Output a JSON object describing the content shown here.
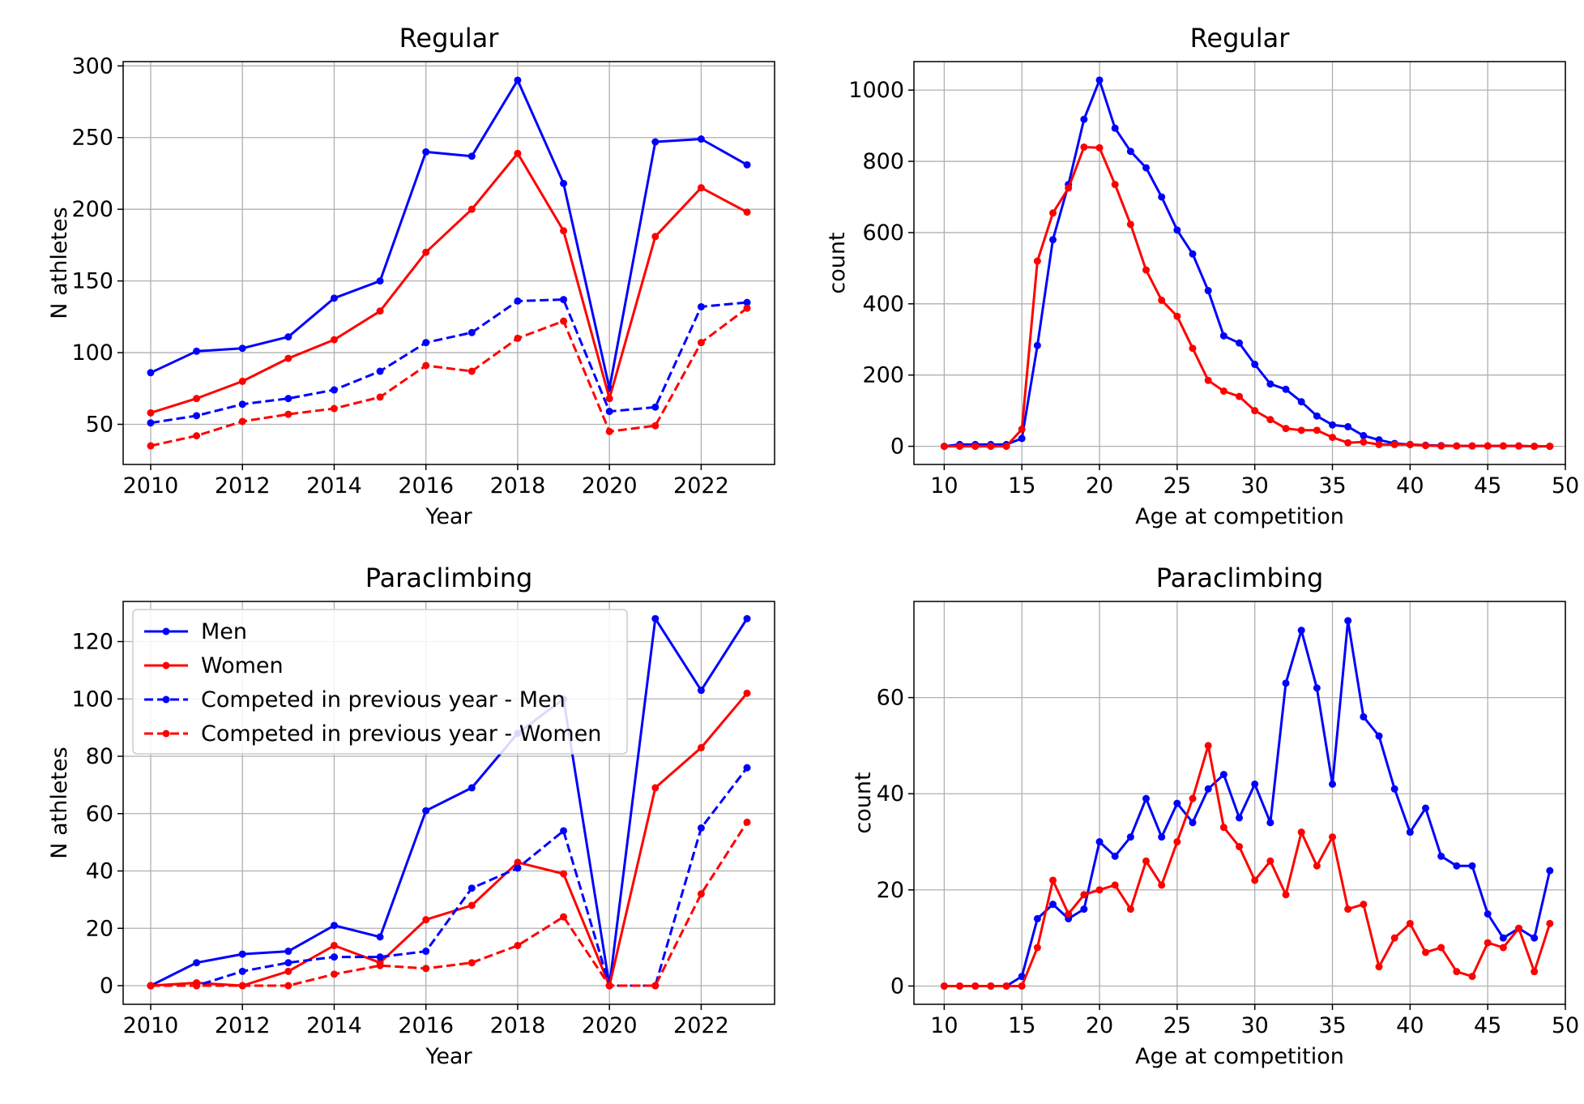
{
  "colors": {
    "men": "#0000ff",
    "women": "#ff0000",
    "grid": "#b0b0b0",
    "axis": "#000000"
  },
  "legend": {
    "placement": "upper-left",
    "entries": [
      {
        "label": "Men",
        "color": "#0000ff",
        "linestyle": "solid"
      },
      {
        "label": "Women",
        "color": "#ff0000",
        "linestyle": "solid"
      },
      {
        "label": "Competed in previous year - Men",
        "color": "#0000ff",
        "linestyle": "dashed"
      },
      {
        "label": "Competed in previous year - Women",
        "color": "#ff0000",
        "linestyle": "dashed"
      }
    ]
  },
  "chart_data": [
    {
      "id": "regular-by-year",
      "type": "line",
      "title": "Regular",
      "xlabel": "Year",
      "ylabel": "N athletes",
      "xlim": [
        2009.4,
        2023.6
      ],
      "ylim": [
        22,
        303
      ],
      "xticks": [
        2010,
        2012,
        2014,
        2016,
        2018,
        2020,
        2022
      ],
      "yticks": [
        50,
        100,
        150,
        200,
        250,
        300
      ],
      "grid": true,
      "legend": false,
      "x": [
        2010,
        2011,
        2012,
        2013,
        2014,
        2015,
        2016,
        2017,
        2018,
        2019,
        2020,
        2021,
        2022,
        2023
      ],
      "series": [
        {
          "name": "Men",
          "color": "#0000ff",
          "linestyle": "solid",
          "values": [
            86,
            101,
            103,
            111,
            138,
            150,
            240,
            237,
            290,
            218,
            75,
            247,
            249,
            231
          ]
        },
        {
          "name": "Women",
          "color": "#ff0000",
          "linestyle": "solid",
          "values": [
            58,
            68,
            80,
            96,
            109,
            129,
            170,
            200,
            239,
            185,
            68,
            181,
            215,
            198
          ]
        },
        {
          "name": "Competed in previous year - Men",
          "color": "#0000ff",
          "linestyle": "dashed",
          "values": [
            51,
            56,
            64,
            68,
            74,
            87,
            107,
            114,
            136,
            137,
            59,
            62,
            132,
            135
          ]
        },
        {
          "name": "Competed in previous year - Women",
          "color": "#ff0000",
          "linestyle": "dashed",
          "values": [
            35,
            42,
            52,
            57,
            61,
            69,
            91,
            87,
            110,
            122,
            45,
            49,
            107,
            131
          ]
        }
      ]
    },
    {
      "id": "regular-by-age",
      "type": "line",
      "title": "Regular",
      "xlabel": "Age at competition",
      "ylabel": "count",
      "xlim": [
        8.05,
        50.0
      ],
      "ylim": [
        -51,
        1080
      ],
      "xticks": [
        10,
        15,
        20,
        25,
        30,
        35,
        40,
        45,
        50
      ],
      "yticks": [
        0,
        200,
        400,
        600,
        800,
        1000
      ],
      "grid": true,
      "legend": false,
      "x": [
        10,
        11,
        12,
        13,
        14,
        15,
        16,
        17,
        18,
        19,
        20,
        21,
        22,
        23,
        24,
        25,
        26,
        27,
        28,
        29,
        30,
        31,
        32,
        33,
        34,
        35,
        36,
        37,
        38,
        39,
        40,
        41,
        42,
        43,
        44,
        45,
        46,
        47,
        48,
        49
      ],
      "series": [
        {
          "name": "Men",
          "color": "#0000ff",
          "linestyle": "solid",
          "values": [
            0,
            5,
            5,
            5,
            5,
            22,
            283,
            580,
            735,
            918,
            1028,
            893,
            828,
            782,
            700,
            607,
            540,
            437,
            310,
            290,
            230,
            175,
            160,
            125,
            85,
            60,
            55,
            30,
            18,
            8,
            5,
            3,
            2,
            1,
            1,
            1,
            1,
            1,
            0,
            0
          ]
        },
        {
          "name": "Women",
          "color": "#ff0000",
          "linestyle": "solid",
          "values": [
            0,
            0,
            0,
            0,
            0,
            48,
            520,
            655,
            725,
            840,
            838,
            735,
            623,
            495,
            410,
            365,
            275,
            185,
            155,
            140,
            100,
            75,
            50,
            45,
            45,
            25,
            10,
            12,
            5,
            5,
            5,
            2,
            1,
            1,
            1,
            1,
            1,
            1,
            0,
            0
          ]
        }
      ]
    },
    {
      "id": "paraclimbing-by-year",
      "type": "line",
      "title": "Paraclimbing",
      "xlabel": "Year",
      "ylabel": "N athletes",
      "xlim": [
        2009.4,
        2023.6
      ],
      "ylim": [
        -6.5,
        134
      ],
      "xticks": [
        2010,
        2012,
        2014,
        2016,
        2018,
        2020,
        2022
      ],
      "yticks": [
        0,
        20,
        40,
        60,
        80,
        100,
        120
      ],
      "grid": true,
      "legend": true,
      "x": [
        2010,
        2011,
        2012,
        2013,
        2014,
        2015,
        2016,
        2017,
        2018,
        2019,
        2020,
        2021,
        2022,
        2023
      ],
      "series": [
        {
          "name": "Men",
          "color": "#0000ff",
          "linestyle": "solid",
          "values": [
            0,
            8,
            11,
            12,
            21,
            17,
            61,
            69,
            88,
            100,
            0,
            128,
            103,
            128
          ]
        },
        {
          "name": "Women",
          "color": "#ff0000",
          "linestyle": "solid",
          "values": [
            0,
            1,
            0,
            5,
            14,
            8,
            23,
            28,
            43,
            39,
            0,
            69,
            83,
            102
          ]
        },
        {
          "name": "Competed in previous year - Men",
          "color": "#0000ff",
          "linestyle": "dashed",
          "values": [
            0,
            0,
            5,
            8,
            10,
            10,
            12,
            34,
            41,
            54,
            0,
            0,
            55,
            76
          ]
        },
        {
          "name": "Competed in previous year - Women",
          "color": "#ff0000",
          "linestyle": "dashed",
          "values": [
            0,
            0,
            0,
            0,
            4,
            7,
            6,
            8,
            14,
            24,
            0,
            0,
            32,
            57
          ]
        }
      ]
    },
    {
      "id": "paraclimbing-by-age",
      "type": "line",
      "title": "Paraclimbing",
      "xlabel": "Age at competition",
      "ylabel": "count",
      "xlim": [
        8.05,
        50.0
      ],
      "ylim": [
        -3.8,
        80
      ],
      "xticks": [
        10,
        15,
        20,
        25,
        30,
        35,
        40,
        45,
        50
      ],
      "yticks": [
        0,
        20,
        40,
        60
      ],
      "grid": true,
      "legend": false,
      "x": [
        10,
        11,
        12,
        13,
        14,
        15,
        16,
        17,
        18,
        19,
        20,
        21,
        22,
        23,
        24,
        25,
        26,
        27,
        28,
        29,
        30,
        31,
        32,
        33,
        34,
        35,
        36,
        37,
        38,
        39,
        40,
        41,
        42,
        43,
        44,
        45,
        46,
        47,
        48,
        49
      ],
      "series": [
        {
          "name": "Men",
          "color": "#0000ff",
          "linestyle": "solid",
          "values": [
            0,
            0,
            0,
            0,
            0,
            2,
            14,
            17,
            14,
            16,
            30,
            27,
            31,
            39,
            31,
            38,
            34,
            41,
            44,
            35,
            42,
            34,
            63,
            74,
            62,
            42,
            76,
            56,
            52,
            41,
            32,
            37,
            27,
            25,
            25,
            15,
            10,
            12,
            10,
            24
          ]
        },
        {
          "name": "Women",
          "color": "#ff0000",
          "linestyle": "solid",
          "values": [
            0,
            0,
            0,
            0,
            0,
            0,
            8,
            22,
            15,
            19,
            20,
            21,
            16,
            26,
            21,
            30,
            39,
            50,
            33,
            29,
            22,
            26,
            19,
            32,
            25,
            31,
            16,
            17,
            4,
            10,
            13,
            7,
            8,
            3,
            2,
            9,
            8,
            12,
            3,
            13
          ]
        }
      ]
    }
  ]
}
